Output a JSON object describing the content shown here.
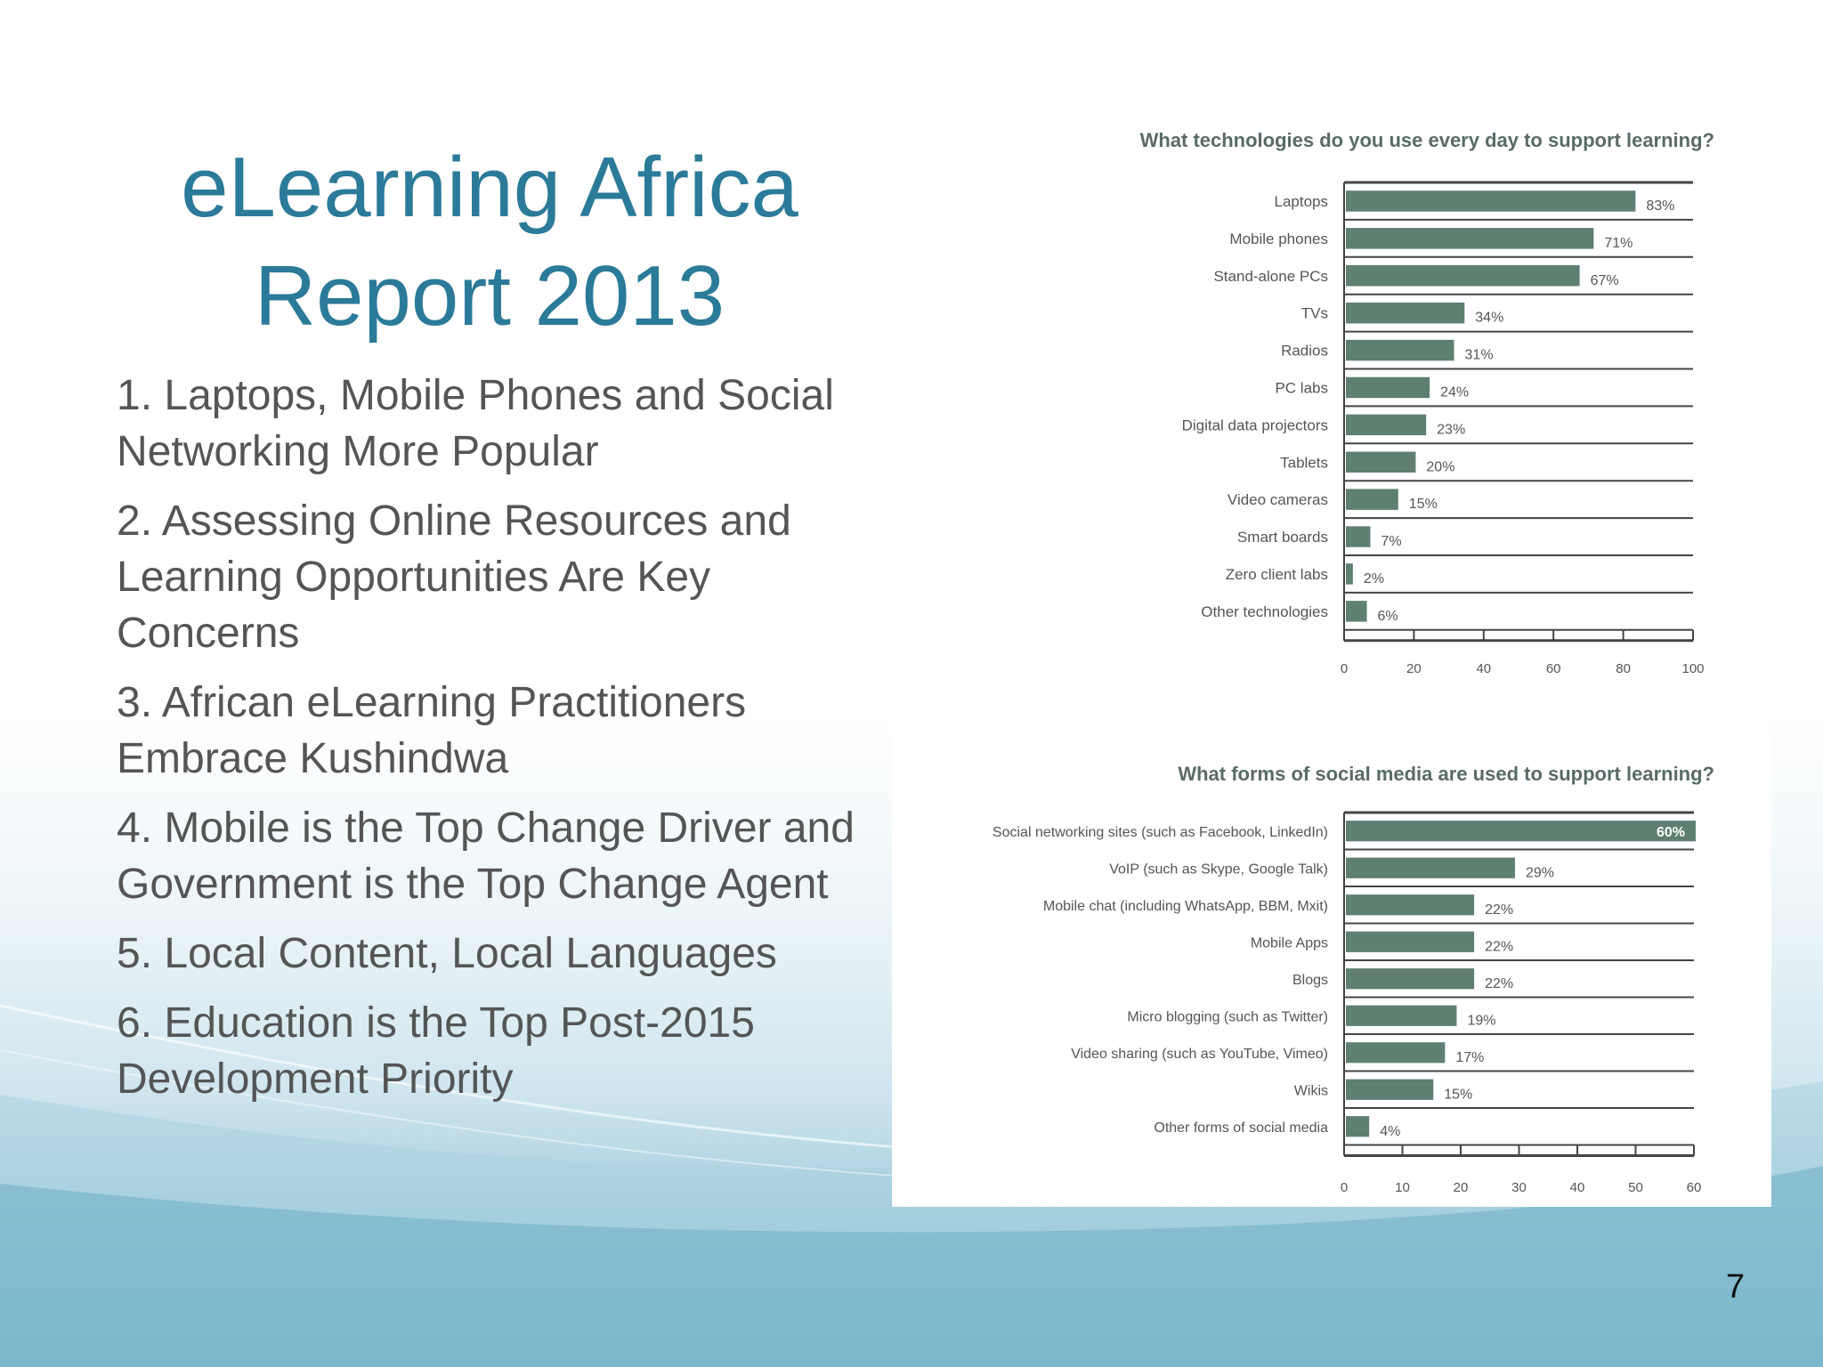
{
  "slide": {
    "title_line1": "eLearning Africa",
    "title_line2": "Report 2013",
    "points": [
      "1. Laptops, Mobile Phones and Social Networking More Popular",
      "2. Assessing Online Resources and Learning Opportunities Are Key Concerns",
      "3. African eLearning Practitioners Embrace Kushindwa",
      "4. Mobile is the Top Change Driver and Government is the Top Change Agent",
      "5. Local Content, Local Languages",
      "6. Education is the Top Post-2015 Development Priority"
    ],
    "page_number": "7"
  },
  "colors": {
    "title": "#2b7a99",
    "body_text": "#555555",
    "bar": "#5f7f71",
    "chart_text": "#555555"
  },
  "chart_data": [
    {
      "type": "bar",
      "orientation": "horizontal",
      "title": "What technologies do you use every day to support learning?",
      "categories": [
        "Laptops",
        "Mobile phones",
        "Stand-alone PCs",
        "TVs",
        "Radios",
        "PC labs",
        "Digital data projectors",
        "Tablets",
        "Video cameras",
        "Smart boards",
        "Zero client labs",
        "Other technologies"
      ],
      "values": [
        83,
        71,
        67,
        34,
        31,
        24,
        23,
        20,
        15,
        7,
        2,
        6
      ],
      "value_labels": [
        "83%",
        "71%",
        "67%",
        "34%",
        "31%",
        "24%",
        "23%",
        "20%",
        "15%",
        "7%",
        "2%",
        "6%"
      ],
      "xlim": [
        0,
        100
      ],
      "ticks": [
        "0",
        "20",
        "40",
        "60",
        "80",
        "100"
      ],
      "grid": false,
      "legend": "none"
    },
    {
      "type": "bar",
      "orientation": "horizontal",
      "title": "What forms of social media are used to support learning?",
      "categories": [
        "Social networking sites (such as Facebook, LinkedIn)",
        "VoIP (such as Skype, Google Talk)",
        "Mobile chat (including WhatsApp, BBM, Mxit)",
        "Mobile Apps",
        "Blogs",
        "Micro blogging (such as Twitter)",
        "Video sharing (such as YouTube, Vimeo)",
        "Wikis",
        "Other forms of social media"
      ],
      "values": [
        60,
        29,
        22,
        22,
        22,
        19,
        17,
        15,
        4
      ],
      "value_labels": [
        "60%",
        "29%",
        "22%",
        "22%",
        "22%",
        "19%",
        "17%",
        "15%",
        "4%"
      ],
      "xlim": [
        0,
        60
      ],
      "ticks": [
        "0",
        "10",
        "20",
        "30",
        "40",
        "50",
        "60"
      ],
      "grid": false,
      "legend": "none"
    }
  ]
}
